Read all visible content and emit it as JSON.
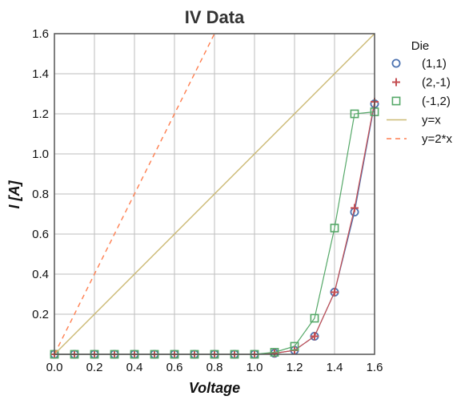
{
  "chart_data": {
    "type": "line",
    "title": "IV Data",
    "xlabel": "Voltage",
    "ylabel": "I [A]",
    "xlim": [
      0.0,
      1.6
    ],
    "ylim": [
      0.0,
      1.6
    ],
    "xticks": [
      "0.0",
      "0.2",
      "0.4",
      "0.6",
      "0.8",
      "1.0",
      "1.2",
      "1.4",
      "1.6"
    ],
    "yticks": [
      "0.2",
      "0.4",
      "0.6",
      "0.8",
      "1.0",
      "1.2",
      "1.4",
      "1.6"
    ],
    "grid": true,
    "legend": {
      "title": "Die",
      "placement": "right-outside-top"
    },
    "series": [
      {
        "name": "(1,1)",
        "marker": "circle",
        "color": "#4c72b0",
        "line_color": "#4c72b0",
        "x": [
          0.0,
          0.1,
          0.2,
          0.3,
          0.4,
          0.5,
          0.6,
          0.7,
          0.8,
          0.9,
          1.0,
          1.1,
          1.2,
          1.3,
          1.4,
          1.5,
          1.6
        ],
        "y": [
          0.0,
          0.0,
          0.0,
          0.0,
          0.0,
          0.0,
          0.0,
          0.0,
          0.0,
          0.0,
          0.0,
          0.005,
          0.02,
          0.09,
          0.31,
          0.71,
          1.25
        ]
      },
      {
        "name": "(2,-1)",
        "marker": "plus",
        "color": "#c44e52",
        "line_color": "#c44e52",
        "x": [
          0.0,
          0.1,
          0.2,
          0.3,
          0.4,
          0.5,
          0.6,
          0.7,
          0.8,
          0.9,
          1.0,
          1.1,
          1.2,
          1.3,
          1.4,
          1.5,
          1.6
        ],
        "y": [
          0.0,
          0.0,
          0.0,
          0.0,
          0.0,
          0.0,
          0.0,
          0.0,
          0.0,
          0.0,
          0.0,
          0.005,
          0.02,
          0.09,
          0.31,
          0.73,
          1.26
        ]
      },
      {
        "name": "(-1,2)",
        "marker": "square",
        "color": "#55a868",
        "line_color": "#55a868",
        "x": [
          0.0,
          0.1,
          0.2,
          0.3,
          0.4,
          0.5,
          0.6,
          0.7,
          0.8,
          0.9,
          1.0,
          1.1,
          1.2,
          1.3,
          1.4,
          1.5,
          1.6
        ],
        "y": [
          0.0,
          0.0,
          0.0,
          0.0,
          0.0,
          0.0,
          0.0,
          0.0,
          0.0,
          0.0,
          0.0,
          0.01,
          0.04,
          0.18,
          0.63,
          1.2,
          1.21
        ]
      },
      {
        "name": "y=x",
        "marker": "none",
        "style": "solid",
        "color": "#ccb974",
        "x": [
          0.0,
          1.6
        ],
        "y": [
          0.0,
          1.6
        ]
      },
      {
        "name": "y=2*x",
        "marker": "none",
        "style": "dashed",
        "color": "#ff7f50",
        "x": [
          0.0,
          0.8
        ],
        "y": [
          0.0,
          1.6
        ]
      }
    ]
  }
}
